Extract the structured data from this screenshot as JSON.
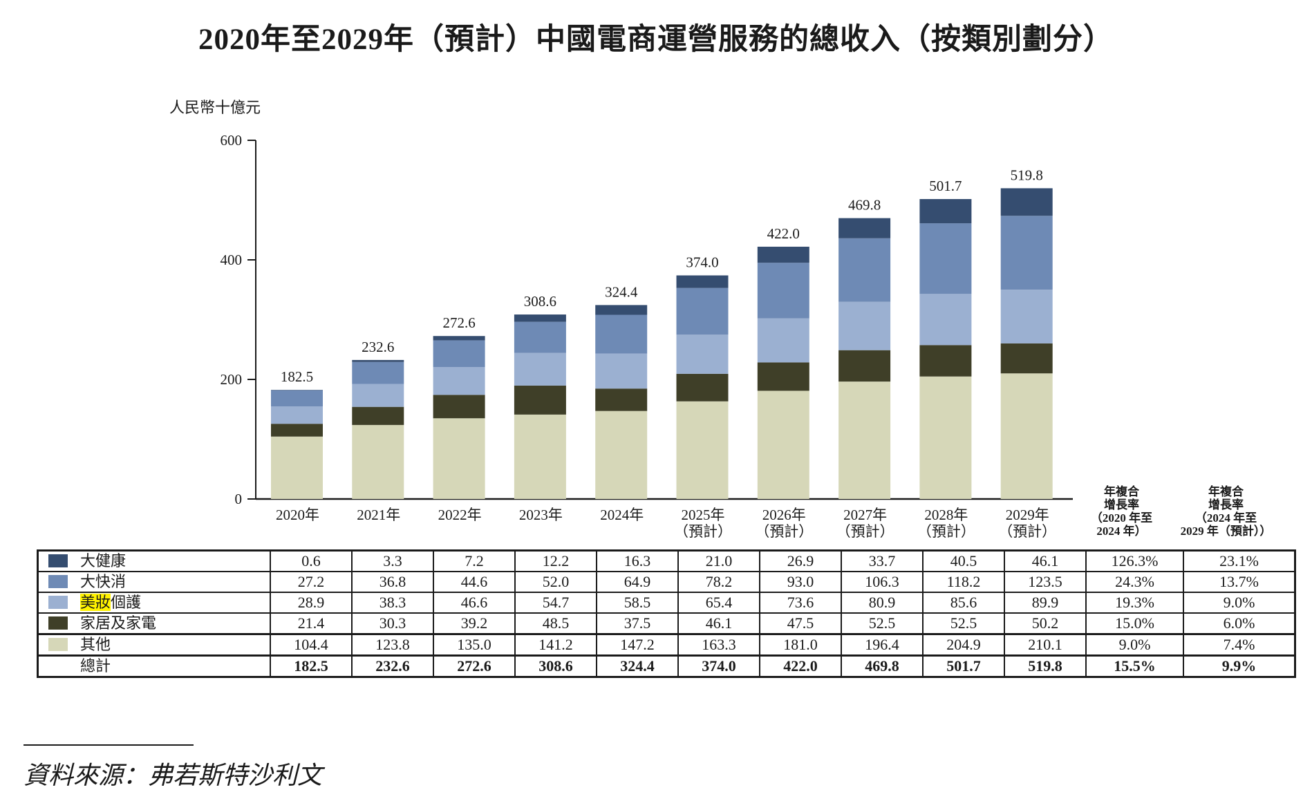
{
  "title": "2020年至2029年（預計）中國電商運營服務的總收入（按類別劃分）",
  "unit_label": "人民幣十億元",
  "cagr_headers": [
    {
      "line1": "年複合",
      "line2": "增長率",
      "line3": "（2020 年至",
      "line4": "2024 年）"
    },
    {
      "line1": "年複合",
      "line2": "增長率",
      "line3": "（2024 年至",
      "line4": "2029 年（預計））"
    }
  ],
  "source": "資料來源：弗若斯特沙利文",
  "chart_data": {
    "type": "bar",
    "stacked": true,
    "title": "2020年至2029年（預計）中國電商運營服務的總收入（按類別劃分）",
    "ylabel": "人民幣十億元",
    "xlabel": "",
    "ylim": [
      0,
      600
    ],
    "yticks": [
      0,
      200,
      400,
      600
    ],
    "grid": false,
    "legend_placement": "table-below",
    "categories": [
      "2020年",
      "2021年",
      "2022年",
      "2023年",
      "2024年",
      "2025年",
      "2026年",
      "2027年",
      "2028年",
      "2029年"
    ],
    "category_sublabels": [
      "",
      "",
      "",
      "",
      "",
      "（預計）",
      "（預計）",
      "（預計）",
      "（預計）",
      "（預計）"
    ],
    "series": [
      {
        "name": "其他",
        "color": "#d6d7b8",
        "values": [
          104.4,
          123.8,
          135.0,
          141.2,
          147.2,
          163.3,
          181.0,
          196.4,
          204.9,
          210.1
        ],
        "cagr_2020_2024": "9.0%",
        "cagr_2024_2029": "7.4%"
      },
      {
        "name": "家居及家電",
        "color": "#3f3f28",
        "values": [
          21.4,
          30.3,
          39.2,
          48.5,
          37.5,
          46.1,
          47.5,
          52.5,
          52.5,
          50.2
        ],
        "cagr_2020_2024": "15.0%",
        "cagr_2024_2029": "6.0%"
      },
      {
        "name": "美妝個護",
        "name_highlight": "美妝",
        "name_rest": "個護",
        "color": "#9bb0d1",
        "values": [
          28.9,
          38.3,
          46.6,
          54.7,
          58.5,
          65.4,
          73.6,
          80.9,
          85.6,
          89.9
        ],
        "cagr_2020_2024": "19.3%",
        "cagr_2024_2029": "9.0%"
      },
      {
        "name": "大快消",
        "color": "#6e8ab5",
        "values": [
          27.2,
          36.8,
          44.6,
          52.0,
          64.9,
          78.2,
          93.0,
          106.3,
          118.2,
          123.5
        ],
        "cagr_2020_2024": "24.3%",
        "cagr_2024_2029": "13.7%"
      },
      {
        "name": "大健康",
        "color": "#354d70",
        "values": [
          0.6,
          3.3,
          7.2,
          12.2,
          16.3,
          21.0,
          26.9,
          33.7,
          40.5,
          46.1
        ],
        "cagr_2020_2024": "126.3%",
        "cagr_2024_2029": "23.1%"
      }
    ],
    "totals": {
      "name": "總計",
      "values": [
        "182.5",
        "232.6",
        "272.6",
        "308.6",
        "324.4",
        "374.0",
        "422.0",
        "469.8",
        "501.7",
        "519.8"
      ],
      "cagr_2020_2024": "15.5%",
      "cagr_2024_2029": "9.9%"
    }
  },
  "table": {
    "rows": [
      {
        "label": "大健康",
        "color": "#354d70",
        "values": [
          "0.6",
          "3.3",
          "7.2",
          "12.2",
          "16.3",
          "21.0",
          "26.9",
          "33.7",
          "40.5",
          "46.1"
        ],
        "cagr1": "126.3%",
        "cagr2": "23.1%"
      },
      {
        "label": "大快消",
        "color": "#6e8ab5",
        "values": [
          "27.2",
          "36.8",
          "44.6",
          "52.0",
          "64.9",
          "78.2",
          "93.0",
          "106.3",
          "118.2",
          "123.5"
        ],
        "cagr1": "24.3%",
        "cagr2": "13.7%"
      },
      {
        "label_highlight": "美妝",
        "label_rest": "個護",
        "color": "#9bb0d1",
        "values": [
          "28.9",
          "38.3",
          "46.6",
          "54.7",
          "58.5",
          "65.4",
          "73.6",
          "80.9",
          "85.6",
          "89.9"
        ],
        "cagr1": "19.3%",
        "cagr2": "9.0%"
      },
      {
        "label": "家居及家電",
        "color": "#3f3f28",
        "values": [
          "21.4",
          "30.3",
          "39.2",
          "48.5",
          "37.5",
          "46.1",
          "47.5",
          "52.5",
          "52.5",
          "50.2"
        ],
        "cagr1": "15.0%",
        "cagr2": "6.0%"
      },
      {
        "label": "其他",
        "color": "#d6d7b8",
        "values": [
          "104.4",
          "123.8",
          "135.0",
          "141.2",
          "147.2",
          "163.3",
          "181.0",
          "196.4",
          "204.9",
          "210.1"
        ],
        "cagr1": "9.0%",
        "cagr2": "7.4%"
      },
      {
        "label": "總計",
        "values": [
          "182.5",
          "232.6",
          "272.6",
          "308.6",
          "324.4",
          "374.0",
          "422.0",
          "469.8",
          "501.7",
          "519.8"
        ],
        "cagr1": "15.5%",
        "cagr2": "9.9%"
      }
    ]
  }
}
